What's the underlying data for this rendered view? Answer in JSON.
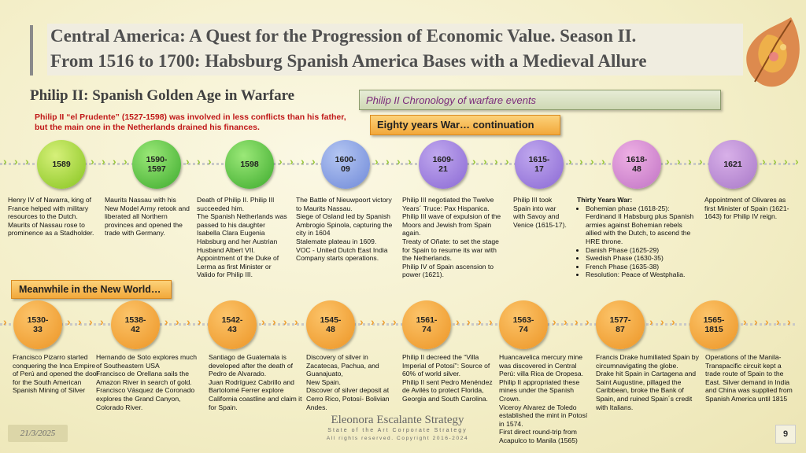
{
  "header": {
    "title_line1": "Central America:  A Quest for the Progression of Economic Value. Season II.",
    "title_line2": "From 1516 to 1700: Habsburg Spanish America Bases with a Medieval Allure",
    "subtitle": "Philip II: Spanish Golden Age in Warfare",
    "intro": "Philip II “el Prudente” (1527-1598) was involved in less conflicts than his father, but the main one in the Netherlands drained his finances.",
    "chronology_label": "Philip II Chronology of warfare events",
    "eighty_years_label": "Eighty years War… continuation",
    "new_world_label": "Meanwhile in the New World…",
    "colors": {
      "title": "#505050",
      "intro": "#c01818",
      "chronology": "#7a2a7a",
      "banner": "#f2a83a"
    }
  },
  "europe_events": [
    {
      "date": "1589",
      "color": "lime",
      "lines": [
        "Henry IV of Navarra, king of France helped with military resources to the Dutch.",
        "Maurits of Nassau rose to prominence as a Stadholder."
      ]
    },
    {
      "date": "1590-\n1597",
      "color": "green",
      "lines": [
        "Maurits Nassau with his New Model Army retook and liberated all Northern provinces and opened the trade with Germany."
      ]
    },
    {
      "date": "1598",
      "color": "green",
      "lines": [
        "Death of Philip II. Philip III succeeded him.",
        "The Spanish Netherlands was passed to his daughter Isabella Clara Eugenia Habsburg and her Austrian Husband Albert VII.",
        "Appointment of the Duke of Lerma as first Minister or Valido for Philip III."
      ]
    },
    {
      "date": "1600-\n09",
      "color": "blue",
      "lines": [
        "The Battle of Nieuwpoort victory to Maurits Nassau.",
        "Siege of Osland led by Spanish Ambrogio Spinola, capturing the city in 1604",
        "Stalemate plateau in 1609.",
        "VOC - United Dutch East India Company starts operations."
      ]
    },
    {
      "date": "1609-\n21",
      "color": "purple",
      "lines": [
        "Philip III negotiated the Twelve Years´ Truce: Pax Hispanica.",
        "Philip III wave of expulsion of the Moors and Jewish from Spain again.",
        "Treaty of Oñate: to set the stage for Spain to resume its war with the Netherlands.",
        "Philip IV of Spain ascension to power (1621)."
      ]
    },
    {
      "date": "1615-\n17",
      "color": "purple",
      "lines": [
        "Philip III took Spain into war with Savoy and Venice (1615-17)."
      ]
    },
    {
      "date": "1618-\n48",
      "color": "pink",
      "heading": "Thirty Years War:",
      "bullets": [
        "Bohemian phase (1618-25): Ferdinand II Habsburg plus Spanish armies against Bohemian rebels allied with the Dutch, to ascend the HRE throne.",
        "Danish Phase (1625-29)",
        "Swedish Phase (1630-35)",
        "French Phase (1635-38)",
        "Resolution: Peace of Westphalia."
      ]
    },
    {
      "date": "1621",
      "color": "lilac",
      "lines": [
        "Appointment of Olivares as first Minister of Spain (1621-1643) for Philip IV reign."
      ]
    }
  ],
  "new_world_events": [
    {
      "date": "1530-\n33",
      "lines": [
        "Francisco Pizarro started conquering the Inca Empire of Perú and opened the door for the South American Spanish Mining of Silver"
      ]
    },
    {
      "date": "1538-\n42",
      "lines": [
        "Hernando de Soto explores much of Southeastern USA",
        "Francisco de Orellana sails the Amazon River in search of gold.",
        "Francisco Vásquez de Coronado explores the Grand Canyon, Colorado River."
      ]
    },
    {
      "date": "1542-\n43",
      "lines": [
        "Santiago de Guatemala is developed after the death of Pedro de Alvarado.",
        "Juan Rodríguez Cabrillo and Bartolomé Ferrer explore California coastline and claim it for Spain."
      ]
    },
    {
      "date": "1545-\n48",
      "lines": [
        "Discovery of silver in Zacatecas, Pachua, and Guanajuato,",
        "New Spain.",
        "Discover of silver deposit at Cerro Rico, Potosí- Bolivian Andes."
      ]
    },
    {
      "date": "1561-\n74",
      "lines": [
        "Philip II decreed the “Villa Imperial of Potosí”: Source of 60% of world silver.",
        "Philip II sent Pedro Menéndez de Avilés to protect Florida, Georgia and South Carolina."
      ]
    },
    {
      "date": "1563-\n74",
      "lines": [
        "Huancavelica mercury mine was discovered in Central Perú: villa Rica de Oropesa.",
        "Philip II appropriated these mines under the Spanish Crown.",
        "Viceroy Alvarez de Toledo established the mint in Potosí in 1574.",
        "First direct round-trip from Acapulco to Manila (1565)"
      ]
    },
    {
      "date": "1577-\n87",
      "lines": [
        "Francis Drake humiliated Spain by circumnavigating the globe.",
        "Drake hit Spain in Cartagena and Saint Augustine, pillaged the Caribbean, broke the Bank of Spain, and ruined Spain´s credit with Italians."
      ]
    },
    {
      "date": "1565-\n1815",
      "lines": [
        "Operations of the Manila-Transpacific circuit kept a trade route of Spain to the East. Silver demand in India and China was supplied from Spanish America until 1815"
      ]
    }
  ],
  "footer": {
    "date": "21/3/2025",
    "brand_name": "Eleonora Escalante Strategy",
    "brand_tagline": "State of the Art Corporate Strategy",
    "brand_copyright": "All rights reserved. Copyright 2016-2024",
    "page_number": "9"
  }
}
